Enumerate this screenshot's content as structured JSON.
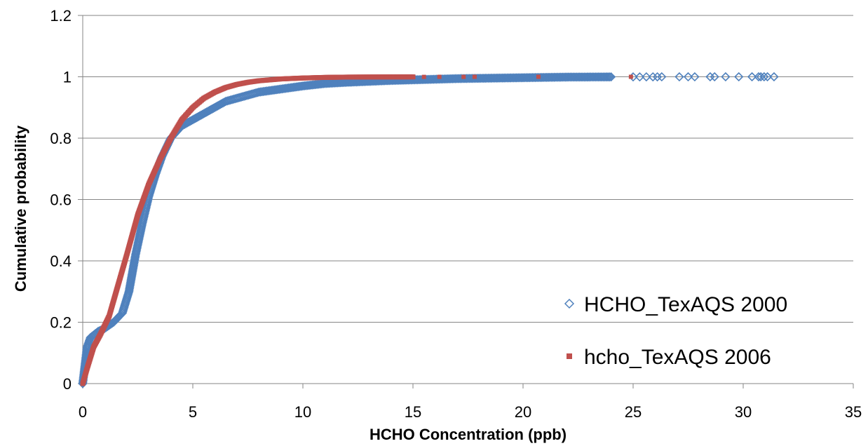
{
  "chart_data": {
    "type": "scatter",
    "title": "",
    "xlabel": "HCHO Concentration (ppb)",
    "ylabel": "Cumulative probability",
    "xlim": [
      0,
      35
    ],
    "ylim": [
      0,
      1.2
    ],
    "x_ticks": [
      0,
      5,
      10,
      15,
      20,
      25,
      30,
      35
    ],
    "y_ticks": [
      0,
      0.2,
      0.4,
      0.6,
      0.8,
      1,
      1.2
    ],
    "grid": "horizontal",
    "legend_position": "bottom-right",
    "series": [
      {
        "name": "HCHO_TexAQS 2000",
        "marker": "diamond",
        "color": "#4F81BD",
        "points": [
          [
            0,
            0
          ],
          [
            0.1,
            0.06
          ],
          [
            0.2,
            0.12
          ],
          [
            0.35,
            0.15
          ],
          [
            0.7,
            0.17
          ],
          [
            1.0,
            0.18
          ],
          [
            1.4,
            0.2
          ],
          [
            1.8,
            0.23
          ],
          [
            2.1,
            0.3
          ],
          [
            2.4,
            0.42
          ],
          [
            2.7,
            0.52
          ],
          [
            3.0,
            0.61
          ],
          [
            3.3,
            0.68
          ],
          [
            3.6,
            0.74
          ],
          [
            4.0,
            0.8
          ],
          [
            4.5,
            0.84
          ],
          [
            5.0,
            0.86
          ],
          [
            5.5,
            0.88
          ],
          [
            6.0,
            0.9
          ],
          [
            6.5,
            0.92
          ],
          [
            7.0,
            0.93
          ],
          [
            8.0,
            0.95
          ],
          [
            9.0,
            0.96
          ],
          [
            10,
            0.97
          ],
          [
            11,
            0.978
          ],
          [
            12,
            0.982
          ],
          [
            13,
            0.985
          ],
          [
            14,
            0.988
          ],
          [
            15,
            0.99
          ],
          [
            16,
            0.992
          ],
          [
            17,
            0.994
          ],
          [
            18,
            0.995
          ],
          [
            19,
            0.996
          ],
          [
            20,
            0.997
          ],
          [
            21,
            0.998
          ],
          [
            22,
            0.999
          ],
          [
            23,
            0.9993
          ],
          [
            23.5,
            0.9995
          ],
          [
            24,
            0.9996
          ],
          [
            25,
            0.9997
          ],
          [
            25.3,
            0.9997
          ],
          [
            25.6,
            0.9998
          ],
          [
            25.9,
            0.9998
          ],
          [
            26.1,
            0.9998
          ],
          [
            26.3,
            0.9999
          ],
          [
            27.1,
            0.9999
          ],
          [
            27.5,
            0.9999
          ],
          [
            27.8,
            0.9999
          ],
          [
            28.5,
            1
          ],
          [
            28.7,
            1
          ],
          [
            29.2,
            1
          ],
          [
            29.8,
            1
          ],
          [
            30.4,
            1
          ],
          [
            30.7,
            1
          ],
          [
            30.8,
            1
          ],
          [
            30.95,
            1
          ],
          [
            31.1,
            1
          ],
          [
            31.4,
            1
          ]
        ]
      },
      {
        "name": "hcho_TexAQS 2006",
        "marker": "square",
        "color": "#C0504D",
        "points": [
          [
            0,
            0
          ],
          [
            0.2,
            0.05
          ],
          [
            0.5,
            0.12
          ],
          [
            0.8,
            0.16
          ],
          [
            1.2,
            0.22
          ],
          [
            1.6,
            0.32
          ],
          [
            2.0,
            0.42
          ],
          [
            2.5,
            0.55
          ],
          [
            3.0,
            0.65
          ],
          [
            3.5,
            0.73
          ],
          [
            4.0,
            0.8
          ],
          [
            4.5,
            0.86
          ],
          [
            5.0,
            0.9
          ],
          [
            5.5,
            0.93
          ],
          [
            6.0,
            0.95
          ],
          [
            6.5,
            0.965
          ],
          [
            7.0,
            0.975
          ],
          [
            7.5,
            0.982
          ],
          [
            8.0,
            0.987
          ],
          [
            9.0,
            0.993
          ],
          [
            10,
            0.996
          ],
          [
            11,
            0.998
          ],
          [
            12,
            0.999
          ],
          [
            13,
            0.9993
          ],
          [
            14,
            0.9995
          ],
          [
            15,
            0.9997
          ],
          [
            15.5,
            0.9997
          ],
          [
            16.2,
            0.9998
          ],
          [
            17.3,
            0.9998
          ],
          [
            17.8,
            0.9999
          ],
          [
            20.7,
            1
          ],
          [
            24.9,
            1
          ]
        ]
      }
    ]
  }
}
